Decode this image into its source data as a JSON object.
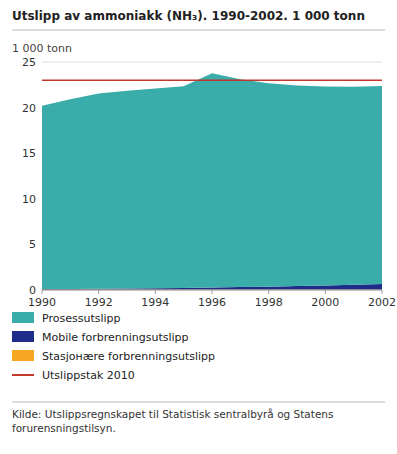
{
  "chart_data": {
    "type": "area",
    "stacked": true,
    "title": "Utslipp av ammoniakk (NH₃). 1990-2002.  1 000 tonn",
    "ylabel": "1 000 tonn",
    "x": [
      1990,
      1991,
      1992,
      1993,
      1994,
      1995,
      1996,
      1997,
      1998,
      1999,
      2000,
      2001,
      2002
    ],
    "series": [
      {
        "name": "Stasjонære forbrenningsutslipp",
        "color": "#f5a623",
        "values": [
          0.05,
          0.05,
          0.05,
          0.05,
          0.05,
          0.05,
          0.05,
          0.05,
          0.05,
          0.05,
          0.05,
          0.05,
          0.05
        ]
      },
      {
        "name": "Mobile forbrenningsutslipp",
        "color": "#1f2d8a",
        "values": [
          0.05,
          0.07,
          0.09,
          0.11,
          0.15,
          0.18,
          0.22,
          0.27,
          0.32,
          0.38,
          0.45,
          0.53,
          0.62
        ]
      },
      {
        "name": "Prosessutslipp",
        "color": "#3aacaa",
        "values": [
          20.1,
          20.8,
          21.4,
          21.7,
          21.9,
          22.1,
          23.5,
          22.8,
          22.3,
          22.0,
          21.8,
          21.7,
          21.7
        ]
      }
    ],
    "reference_lines": [
      {
        "name": "Utslippstak 2010",
        "value": 23.0,
        "color": "#c0392b"
      }
    ],
    "xlim": [
      1990,
      2002
    ],
    "xticks": [
      1990,
      1992,
      1994,
      1996,
      1998,
      2000,
      2002
    ],
    "ylim": [
      0,
      25
    ],
    "yticks": [
      0,
      5,
      10,
      15,
      20,
      25
    ],
    "grid": true,
    "source": "Kilde: Utslippsregnskapet til Statistisk sentralbyrå og Statens\nforurensningstilsyn."
  }
}
